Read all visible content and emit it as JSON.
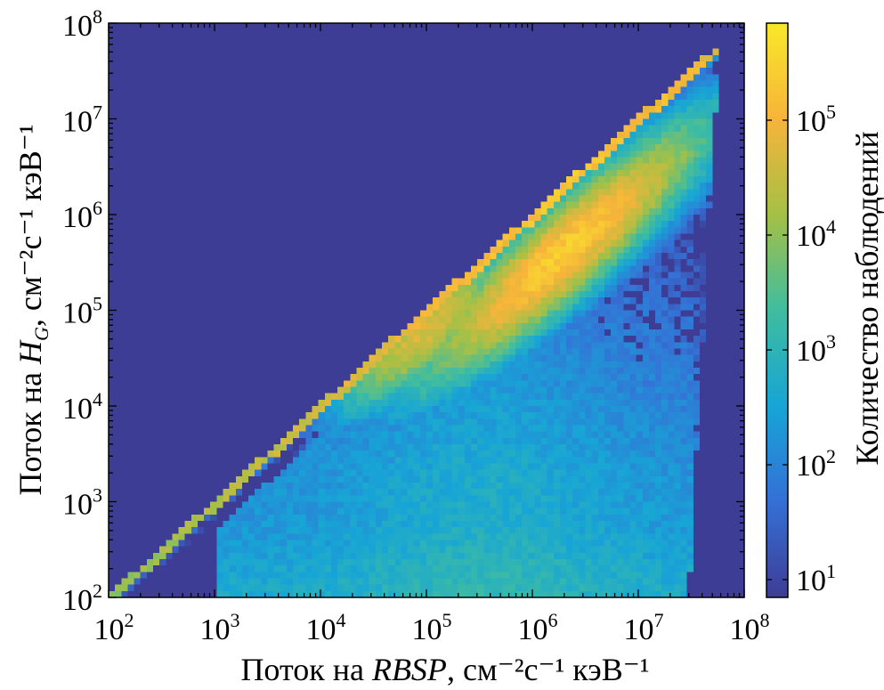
{
  "chart_data": {
    "type": "heatmap",
    "title": "",
    "xlabel": {
      "prefix": "Поток на ",
      "italic": "RBSP",
      "units": ", см⁻²с⁻¹ кэВ⁻¹"
    },
    "ylabel": {
      "prefix": "Поток на ",
      "italic": "H",
      "italic_sub": "G",
      "units": ", см⁻²с⁻¹ кэВ⁻¹"
    },
    "x_scale": "log",
    "y_scale": "log",
    "xlim": [
      100,
      100000000
    ],
    "ylim": [
      100,
      100000000
    ],
    "x_ticks": [
      {
        "base": "10",
        "exp": "2"
      },
      {
        "base": "10",
        "exp": "3"
      },
      {
        "base": "10",
        "exp": "4"
      },
      {
        "base": "10",
        "exp": "5"
      },
      {
        "base": "10",
        "exp": "6"
      },
      {
        "base": "10",
        "exp": "7"
      },
      {
        "base": "10",
        "exp": "8"
      }
    ],
    "y_ticks": [
      {
        "base": "10",
        "exp": "2"
      },
      {
        "base": "10",
        "exp": "3"
      },
      {
        "base": "10",
        "exp": "4"
      },
      {
        "base": "10",
        "exp": "5"
      },
      {
        "base": "10",
        "exp": "6"
      },
      {
        "base": "10",
        "exp": "7"
      },
      {
        "base": "10",
        "exp": "8"
      }
    ],
    "colorbar": {
      "label": "Количество наблюдений",
      "scale": "log",
      "range": [
        7,
        700000
      ],
      "ticks": [
        {
          "base": "10",
          "exp": "1"
        },
        {
          "base": "10",
          "exp": "2"
        },
        {
          "base": "10",
          "exp": "3"
        },
        {
          "base": "10",
          "exp": "4"
        },
        {
          "base": "10",
          "exp": "5"
        }
      ],
      "colormap": "parula",
      "colors": [
        "#3e3d95",
        "#3570d6",
        "#17a5d6",
        "#3fbda0",
        "#a5c046",
        "#f7b43a",
        "#f9e82a"
      ]
    },
    "features": [
      {
        "description": "diagonal edge y = x",
        "log_counts": 5.3
      },
      {
        "description": "main cluster peak",
        "x": 2000000,
        "y": 400000,
        "log_counts": 5.4
      },
      {
        "description": "secondary ridge",
        "x": 100000,
        "y": 60000,
        "log_counts": 4.7
      }
    ],
    "grid": false,
    "background_color": "#3e3d95"
  }
}
